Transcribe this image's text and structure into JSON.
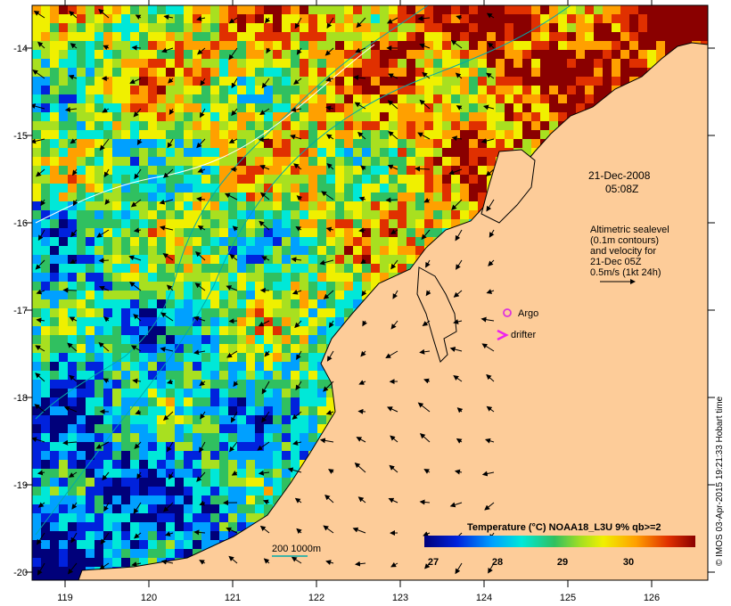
{
  "map": {
    "lon_ticks": [
      "119",
      "120",
      "121",
      "122",
      "123",
      "124",
      "125",
      "126"
    ],
    "lat_ticks": [
      "-14",
      "-15",
      "-16",
      "-17",
      "-18",
      "-19",
      "-20"
    ],
    "lon_range": [
      118.6,
      126.7
    ],
    "lat_range": [
      -20.1,
      -13.6
    ],
    "timestamp": {
      "date": "21-Dec-2008",
      "time": "05:08Z"
    },
    "altimetry_note": [
      "Altimetric sealevel",
      "(0.1m contours)",
      "and velocity for",
      "21-Dec 05Z",
      "0.5m/s (1kt 24h)"
    ],
    "legend": {
      "argo_label": "Argo",
      "drifter_label": "drifter"
    },
    "isobath_label": "200  1000m",
    "colorbar": {
      "title": "Temperature (°C) NOAA18_L3U 9% qb>=2",
      "ticks": [
        "27",
        "28",
        "29",
        "30"
      ],
      "range": [
        26.6,
        31.0
      ]
    },
    "credit": "© IMOS 03-Apr-2015 19:21:33 Hobart time",
    "colors": {
      "land": "#fdcc99",
      "argo": "#dd33dd",
      "drifter": "#ee22ee",
      "isobath": "#00aaaa"
    }
  }
}
